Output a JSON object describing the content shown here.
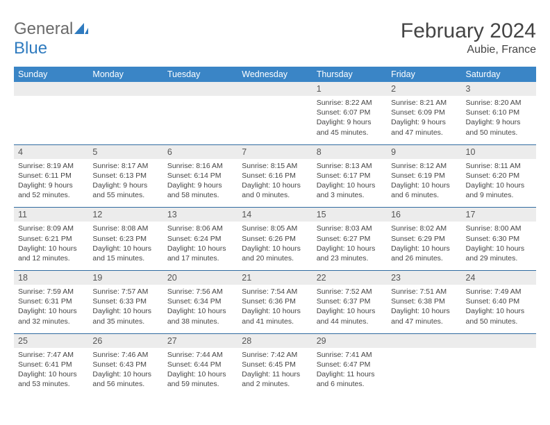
{
  "logo": {
    "part1": "General",
    "part2": "Blue"
  },
  "title": "February 2024",
  "location": "Aubie, France",
  "colors": {
    "header_bg": "#3a85c6",
    "header_text": "#ffffff",
    "daynum_bg": "#ececec",
    "row_divider": "#2f6aa0",
    "body_text": "#444444",
    "logo_gray": "#6a6a6a",
    "logo_blue": "#2f7bbf",
    "page_bg": "#ffffff"
  },
  "fonts": {
    "family": "Arial, Helvetica, sans-serif",
    "title_size_pt": 22,
    "location_size_pt": 12,
    "weekday_size_pt": 9,
    "daynum_size_pt": 9,
    "detail_size_pt": 8
  },
  "layout": {
    "cols": 7,
    "weeks": 5,
    "aspect": "792x612"
  },
  "weekdays": [
    "Sunday",
    "Monday",
    "Tuesday",
    "Wednesday",
    "Thursday",
    "Friday",
    "Saturday"
  ],
  "weeks": [
    [
      null,
      null,
      null,
      null,
      {
        "n": "1",
        "sr": "Sunrise: 8:22 AM",
        "ss": "Sunset: 6:07 PM",
        "dl1": "Daylight: 9 hours",
        "dl2": "and 45 minutes."
      },
      {
        "n": "2",
        "sr": "Sunrise: 8:21 AM",
        "ss": "Sunset: 6:09 PM",
        "dl1": "Daylight: 9 hours",
        "dl2": "and 47 minutes."
      },
      {
        "n": "3",
        "sr": "Sunrise: 8:20 AM",
        "ss": "Sunset: 6:10 PM",
        "dl1": "Daylight: 9 hours",
        "dl2": "and 50 minutes."
      }
    ],
    [
      {
        "n": "4",
        "sr": "Sunrise: 8:19 AM",
        "ss": "Sunset: 6:11 PM",
        "dl1": "Daylight: 9 hours",
        "dl2": "and 52 minutes."
      },
      {
        "n": "5",
        "sr": "Sunrise: 8:17 AM",
        "ss": "Sunset: 6:13 PM",
        "dl1": "Daylight: 9 hours",
        "dl2": "and 55 minutes."
      },
      {
        "n": "6",
        "sr": "Sunrise: 8:16 AM",
        "ss": "Sunset: 6:14 PM",
        "dl1": "Daylight: 9 hours",
        "dl2": "and 58 minutes."
      },
      {
        "n": "7",
        "sr": "Sunrise: 8:15 AM",
        "ss": "Sunset: 6:16 PM",
        "dl1": "Daylight: 10 hours",
        "dl2": "and 0 minutes."
      },
      {
        "n": "8",
        "sr": "Sunrise: 8:13 AM",
        "ss": "Sunset: 6:17 PM",
        "dl1": "Daylight: 10 hours",
        "dl2": "and 3 minutes."
      },
      {
        "n": "9",
        "sr": "Sunrise: 8:12 AM",
        "ss": "Sunset: 6:19 PM",
        "dl1": "Daylight: 10 hours",
        "dl2": "and 6 minutes."
      },
      {
        "n": "10",
        "sr": "Sunrise: 8:11 AM",
        "ss": "Sunset: 6:20 PM",
        "dl1": "Daylight: 10 hours",
        "dl2": "and 9 minutes."
      }
    ],
    [
      {
        "n": "11",
        "sr": "Sunrise: 8:09 AM",
        "ss": "Sunset: 6:21 PM",
        "dl1": "Daylight: 10 hours",
        "dl2": "and 12 minutes."
      },
      {
        "n": "12",
        "sr": "Sunrise: 8:08 AM",
        "ss": "Sunset: 6:23 PM",
        "dl1": "Daylight: 10 hours",
        "dl2": "and 15 minutes."
      },
      {
        "n": "13",
        "sr": "Sunrise: 8:06 AM",
        "ss": "Sunset: 6:24 PM",
        "dl1": "Daylight: 10 hours",
        "dl2": "and 17 minutes."
      },
      {
        "n": "14",
        "sr": "Sunrise: 8:05 AM",
        "ss": "Sunset: 6:26 PM",
        "dl1": "Daylight: 10 hours",
        "dl2": "and 20 minutes."
      },
      {
        "n": "15",
        "sr": "Sunrise: 8:03 AM",
        "ss": "Sunset: 6:27 PM",
        "dl1": "Daylight: 10 hours",
        "dl2": "and 23 minutes."
      },
      {
        "n": "16",
        "sr": "Sunrise: 8:02 AM",
        "ss": "Sunset: 6:29 PM",
        "dl1": "Daylight: 10 hours",
        "dl2": "and 26 minutes."
      },
      {
        "n": "17",
        "sr": "Sunrise: 8:00 AM",
        "ss": "Sunset: 6:30 PM",
        "dl1": "Daylight: 10 hours",
        "dl2": "and 29 minutes."
      }
    ],
    [
      {
        "n": "18",
        "sr": "Sunrise: 7:59 AM",
        "ss": "Sunset: 6:31 PM",
        "dl1": "Daylight: 10 hours",
        "dl2": "and 32 minutes."
      },
      {
        "n": "19",
        "sr": "Sunrise: 7:57 AM",
        "ss": "Sunset: 6:33 PM",
        "dl1": "Daylight: 10 hours",
        "dl2": "and 35 minutes."
      },
      {
        "n": "20",
        "sr": "Sunrise: 7:56 AM",
        "ss": "Sunset: 6:34 PM",
        "dl1": "Daylight: 10 hours",
        "dl2": "and 38 minutes."
      },
      {
        "n": "21",
        "sr": "Sunrise: 7:54 AM",
        "ss": "Sunset: 6:36 PM",
        "dl1": "Daylight: 10 hours",
        "dl2": "and 41 minutes."
      },
      {
        "n": "22",
        "sr": "Sunrise: 7:52 AM",
        "ss": "Sunset: 6:37 PM",
        "dl1": "Daylight: 10 hours",
        "dl2": "and 44 minutes."
      },
      {
        "n": "23",
        "sr": "Sunrise: 7:51 AM",
        "ss": "Sunset: 6:38 PM",
        "dl1": "Daylight: 10 hours",
        "dl2": "and 47 minutes."
      },
      {
        "n": "24",
        "sr": "Sunrise: 7:49 AM",
        "ss": "Sunset: 6:40 PM",
        "dl1": "Daylight: 10 hours",
        "dl2": "and 50 minutes."
      }
    ],
    [
      {
        "n": "25",
        "sr": "Sunrise: 7:47 AM",
        "ss": "Sunset: 6:41 PM",
        "dl1": "Daylight: 10 hours",
        "dl2": "and 53 minutes."
      },
      {
        "n": "26",
        "sr": "Sunrise: 7:46 AM",
        "ss": "Sunset: 6:43 PM",
        "dl1": "Daylight: 10 hours",
        "dl2": "and 56 minutes."
      },
      {
        "n": "27",
        "sr": "Sunrise: 7:44 AM",
        "ss": "Sunset: 6:44 PM",
        "dl1": "Daylight: 10 hours",
        "dl2": "and 59 minutes."
      },
      {
        "n": "28",
        "sr": "Sunrise: 7:42 AM",
        "ss": "Sunset: 6:45 PM",
        "dl1": "Daylight: 11 hours",
        "dl2": "and 2 minutes."
      },
      {
        "n": "29",
        "sr": "Sunrise: 7:41 AM",
        "ss": "Sunset: 6:47 PM",
        "dl1": "Daylight: 11 hours",
        "dl2": "and 6 minutes."
      },
      null,
      null
    ]
  ]
}
